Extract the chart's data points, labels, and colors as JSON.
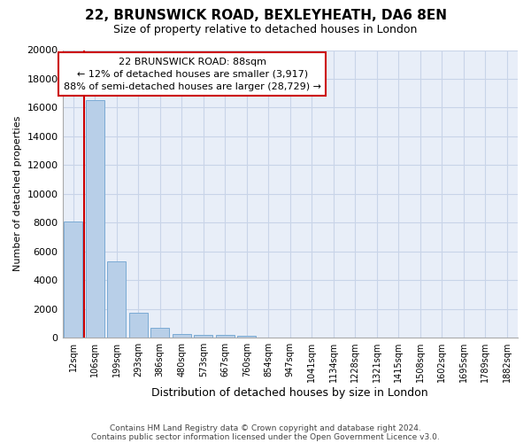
{
  "title": "22, BRUNSWICK ROAD, BEXLEYHEATH, DA6 8EN",
  "subtitle": "Size of property relative to detached houses in London",
  "xlabel": "Distribution of detached houses by size in London",
  "ylabel": "Number of detached properties",
  "categories": [
    "12sqm",
    "106sqm",
    "199sqm",
    "293sqm",
    "386sqm",
    "480sqm",
    "573sqm",
    "667sqm",
    "760sqm",
    "854sqm",
    "947sqm",
    "1041sqm",
    "1134sqm",
    "1228sqm",
    "1321sqm",
    "1415sqm",
    "1508sqm",
    "1602sqm",
    "1695sqm",
    "1789sqm",
    "1882sqm"
  ],
  "values": [
    8100,
    16500,
    5300,
    1750,
    700,
    280,
    200,
    160,
    100,
    0,
    0,
    0,
    0,
    0,
    0,
    0,
    0,
    0,
    0,
    0,
    0
  ],
  "bar_color": "#b8cfe8",
  "bar_edge_color": "#7aaad4",
  "vline_color": "#cc0000",
  "annotation_title": "22 BRUNSWICK ROAD: 88sqm",
  "annotation_line1": "← 12% of detached houses are smaller (3,917)",
  "annotation_line2": "88% of semi-detached houses are larger (28,729) →",
  "annotation_box_color": "#ffffff",
  "annotation_box_edge": "#cc0000",
  "ylim": [
    0,
    20000
  ],
  "yticks": [
    0,
    2000,
    4000,
    6000,
    8000,
    10000,
    12000,
    14000,
    16000,
    18000,
    20000
  ],
  "grid_color": "#c8d4e8",
  "plot_bg_color": "#e8eef8",
  "figure_bg_color": "#ffffff",
  "footer_line1": "Contains HM Land Registry data © Crown copyright and database right 2024.",
  "footer_line2": "Contains public sector information licensed under the Open Government Licence v3.0."
}
